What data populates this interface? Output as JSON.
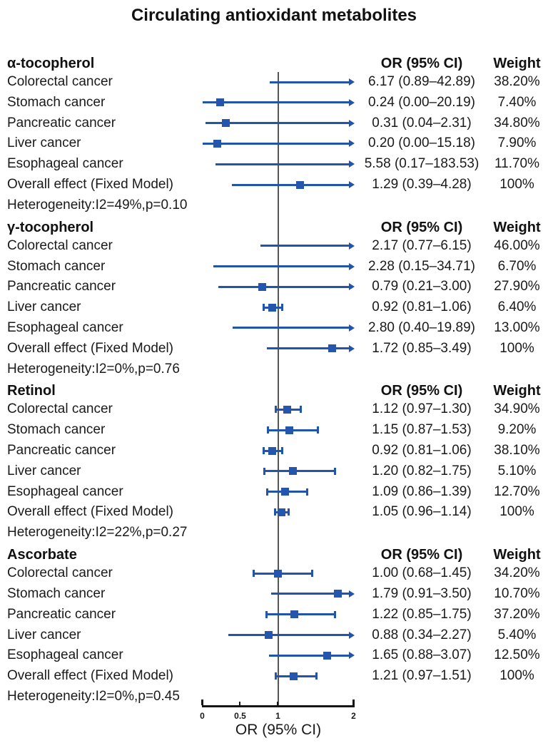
{
  "title": "Circulating antioxidant metabolites",
  "columns": {
    "or": "OR (95% CI)",
    "weight": "Weight"
  },
  "axis": {
    "label": "OR (95% CI)",
    "min": 0,
    "max": 2,
    "ticks": [
      0,
      0.5,
      1,
      2
    ],
    "tick_labels": [
      "0",
      "0.5",
      "1",
      "2"
    ],
    "reference_line": 1
  },
  "colors": {
    "ci_blue": "#2155ad",
    "marker_blue": "#2456ae",
    "reference_gray": "#565656",
    "axis_black": "#151515",
    "text_black": "#1a1a1a"
  },
  "chart_data": {
    "type": "forest",
    "title": "Circulating antioxidant metabolites",
    "xlabel": "OR (95% CI)",
    "x_range": [
      0,
      2
    ],
    "clip_arrow_above": 2,
    "groups": [
      {
        "name": "α-tocopherol",
        "heterogeneity": "Heterogeneity:I2=49%,p=0.10",
        "rows": [
          {
            "label": "Colorectal cancer",
            "or": 6.17,
            "lo": 0.89,
            "hi": 42.89,
            "or_text": "6.17 (0.89–42.89)",
            "weight": "38.20%"
          },
          {
            "label": "Stomach cancer",
            "or": 0.24,
            "lo": 0.0,
            "hi": 20.19,
            "or_text": "0.24 (0.00–20.19)",
            "weight": "7.40%"
          },
          {
            "label": "Pancreatic cancer",
            "or": 0.31,
            "lo": 0.04,
            "hi": 2.31,
            "or_text": "0.31 (0.04–2.31)",
            "weight": "34.80%"
          },
          {
            "label": "Liver cancer",
            "or": 0.2,
            "lo": 0.0,
            "hi": 15.18,
            "or_text": "0.20 (0.00–15.18)",
            "weight": "7.90%"
          },
          {
            "label": "Esophageal cancer",
            "or": 5.58,
            "lo": 0.17,
            "hi": 183.53,
            "or_text": "5.58 (0.17–183.53)",
            "weight": "11.70%"
          },
          {
            "label": "Overall effect (Fixed Model)",
            "or": 1.29,
            "lo": 0.39,
            "hi": 4.28,
            "or_text": "1.29 (0.39–4.28)",
            "weight": "100%"
          }
        ]
      },
      {
        "name": "γ-tocopherol",
        "heterogeneity": "Heterogeneity:I2=0%,p=0.76",
        "rows": [
          {
            "label": "Colorectal cancer",
            "or": 2.17,
            "lo": 0.77,
            "hi": 6.15,
            "or_text": "2.17 (0.77–6.15)",
            "weight": "46.00%"
          },
          {
            "label": "Stomach cancer",
            "or": 2.28,
            "lo": 0.15,
            "hi": 34.71,
            "or_text": "2.28 (0.15–34.71)",
            "weight": "6.70%"
          },
          {
            "label": "Pancreatic cancer",
            "or": 0.79,
            "lo": 0.21,
            "hi": 3.0,
            "or_text": "0.79 (0.21–3.00)",
            "weight": "27.90%"
          },
          {
            "label": "Liver cancer",
            "or": 0.92,
            "lo": 0.81,
            "hi": 1.06,
            "or_text": "0.92 (0.81–1.06)",
            "weight": "6.40%"
          },
          {
            "label": "Esophageal cancer",
            "or": 2.8,
            "lo": 0.4,
            "hi": 19.89,
            "or_text": "2.80 (0.40–19.89)",
            "weight": "13.00%"
          },
          {
            "label": "Overall effect (Fixed Model)",
            "or": 1.72,
            "lo": 0.85,
            "hi": 3.49,
            "or_text": "1.72 (0.85–3.49)",
            "weight": "100%"
          }
        ]
      },
      {
        "name": "Retinol",
        "heterogeneity": "Heterogeneity:I2=22%,p=0.27",
        "rows": [
          {
            "label": "Colorectal cancer",
            "or": 1.12,
            "lo": 0.97,
            "hi": 1.3,
            "or_text": "1.12 (0.97–1.30)",
            "weight": "34.90%"
          },
          {
            "label": "Stomach cancer",
            "or": 1.15,
            "lo": 0.87,
            "hi": 1.53,
            "or_text": "1.15 (0.87–1.53)",
            "weight": "9.20%"
          },
          {
            "label": "Pancreatic cancer",
            "or": 0.92,
            "lo": 0.81,
            "hi": 1.06,
            "or_text": "0.92 (0.81–1.06)",
            "weight": "38.10%"
          },
          {
            "label": "Liver cancer",
            "or": 1.2,
            "lo": 0.82,
            "hi": 1.75,
            "or_text": "1.20 (0.82–1.75)",
            "weight": "5.10%"
          },
          {
            "label": "Esophageal cancer",
            "or": 1.09,
            "lo": 0.86,
            "hi": 1.39,
            "or_text": "1.09 (0.86–1.39)",
            "weight": "12.70%"
          },
          {
            "label": "Overall effect (Fixed Model)",
            "or": 1.05,
            "lo": 0.96,
            "hi": 1.14,
            "or_text": "1.05 (0.96–1.14)",
            "weight": "100%"
          }
        ]
      },
      {
        "name": "Ascorbate",
        "heterogeneity": "Heterogeneity:I2=0%,p=0.45",
        "rows": [
          {
            "label": "Colorectal cancer",
            "or": 1.0,
            "lo": 0.68,
            "hi": 1.45,
            "or_text": "1.00 (0.68–1.45)",
            "weight": "34.20%"
          },
          {
            "label": "Stomach cancer",
            "or": 1.79,
            "lo": 0.91,
            "hi": 3.5,
            "or_text": "1.79 (0.91–3.50)",
            "weight": "10.70%"
          },
          {
            "label": "Pancreatic cancer",
            "or": 1.22,
            "lo": 0.85,
            "hi": 1.75,
            "or_text": "1.22 (0.85–1.75)",
            "weight": "37.20%"
          },
          {
            "label": "Liver cancer",
            "or": 0.88,
            "lo": 0.34,
            "hi": 2.27,
            "or_text": "0.88 (0.34–2.27)",
            "weight": "5.40%"
          },
          {
            "label": "Esophageal cancer",
            "or": 1.65,
            "lo": 0.88,
            "hi": 3.07,
            "or_text": "1.65 (0.88–3.07)",
            "weight": "12.50%"
          },
          {
            "label": "Overall effect (Fixed Model)",
            "or": 1.21,
            "lo": 0.97,
            "hi": 1.51,
            "or_text": "1.21 (0.97–1.51)",
            "weight": "100%"
          }
        ]
      }
    ]
  }
}
